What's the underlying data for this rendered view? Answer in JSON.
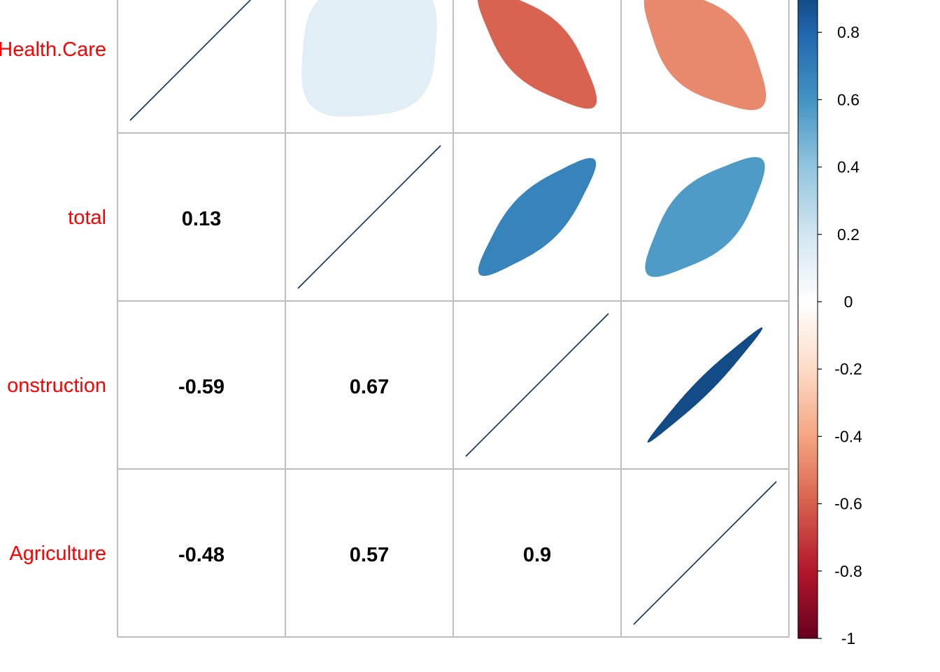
{
  "chart_data": {
    "type": "heatmap",
    "variables": [
      "Health.Care",
      "total",
      "Construction",
      "Agriculture"
    ],
    "row_labels_visible": [
      "Health.Care",
      "total",
      "onstruction",
      "Agriculture"
    ],
    "matrix": [
      [
        1.0,
        0.13,
        -0.59,
        -0.48
      ],
      [
        0.13,
        1.0,
        0.67,
        0.57
      ],
      [
        -0.59,
        0.67,
        1.0,
        0.9
      ],
      [
        -0.48,
        0.57,
        0.9,
        1.0
      ]
    ],
    "lower_number_labels": [
      {
        "row": 1,
        "col": 0,
        "label": "0.13"
      },
      {
        "row": 2,
        "col": 0,
        "label": "-0.59"
      },
      {
        "row": 2,
        "col": 1,
        "label": "0.67"
      },
      {
        "row": 3,
        "col": 0,
        "label": "-0.48"
      },
      {
        "row": 3,
        "col": 1,
        "label": "0.57"
      },
      {
        "row": 3,
        "col": 2,
        "label": "0.9"
      }
    ],
    "upper_method": "ellipse",
    "lower_method": "number",
    "diagonal": "line",
    "colorbar": {
      "range": [
        -1,
        1
      ],
      "ticks": [
        "-1",
        "-0.8",
        "-0.6",
        "-0.4",
        "-0.2",
        "0",
        "0.2",
        "0.4",
        "0.6",
        "0.8"
      ],
      "tick_values": [
        -1,
        -0.8,
        -0.6,
        -0.4,
        -0.2,
        0,
        0.2,
        0.4,
        0.6,
        0.8
      ],
      "colors": [
        "#67001f",
        "#b2182b",
        "#d6604d",
        "#f4a582",
        "#fddbc7",
        "#ffffff",
        "#d1e5f0",
        "#92c5de",
        "#4393c3",
        "#2166ac",
        "#053061"
      ]
    },
    "label_color": "#ff0000",
    "grid_color": "#bebebe"
  }
}
